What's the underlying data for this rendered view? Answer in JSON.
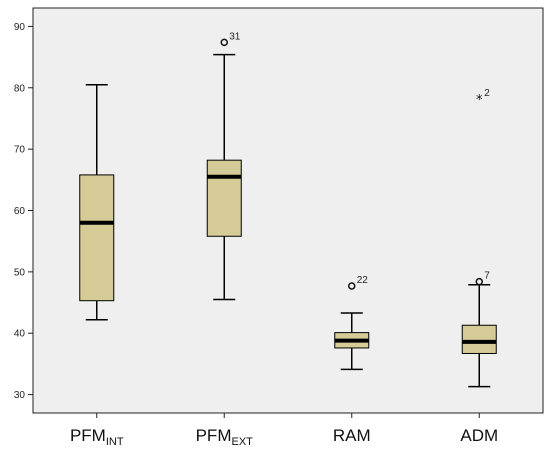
{
  "chart_data": {
    "type": "boxplot",
    "title": "",
    "xlabel": "",
    "ylabel": "",
    "ylim": [
      27,
      93
    ],
    "yticks": [
      30,
      40,
      50,
      60,
      70,
      80,
      90
    ],
    "grid": false,
    "legend": "none",
    "colors": {
      "box_fill": "#d4cb97",
      "plot_bg": "#efefef",
      "median": "#000000",
      "stroke": "#000000"
    },
    "categories": [
      {
        "main": "PFM",
        "sub": "INT"
      },
      {
        "main": "PFM",
        "sub": "EXT"
      },
      {
        "main": "RAM",
        "sub": ""
      },
      {
        "main": "ADM",
        "sub": ""
      }
    ],
    "boxes": [
      {
        "whisker_low": 42.2,
        "q1": 45.3,
        "median": 58.0,
        "q3": 65.8,
        "whisker_high": 80.5,
        "outliers": []
      },
      {
        "whisker_low": 45.5,
        "q1": 55.8,
        "median": 65.5,
        "q3": 68.2,
        "whisker_high": 85.4,
        "outliers": [
          {
            "value": 87.4,
            "label": "31",
            "marker": "circle"
          }
        ]
      },
      {
        "whisker_low": 34.1,
        "q1": 37.6,
        "median": 38.8,
        "q3": 40.1,
        "whisker_high": 43.3,
        "outliers": [
          {
            "value": 47.7,
            "label": "22",
            "marker": "circle"
          }
        ]
      },
      {
        "whisker_low": 31.3,
        "q1": 36.7,
        "median": 38.6,
        "q3": 41.3,
        "whisker_high": 47.9,
        "outliers": [
          {
            "value": 48.4,
            "label": "7",
            "marker": "circle"
          },
          {
            "value": 78.2,
            "label": "2",
            "marker": "star"
          }
        ]
      }
    ]
  }
}
